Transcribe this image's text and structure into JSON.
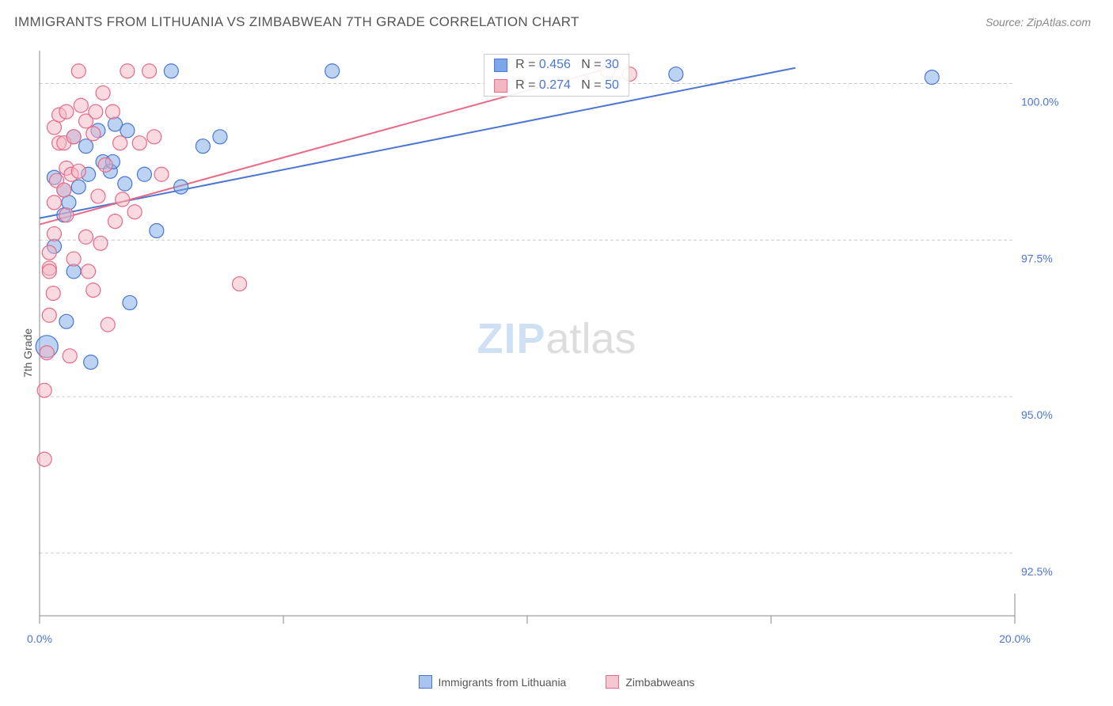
{
  "title": "IMMIGRANTS FROM LITHUANIA VS ZIMBABWEAN 7TH GRADE CORRELATION CHART",
  "source_label": "Source:",
  "source_value": "ZipAtlas.com",
  "y_axis_label": "7th Grade",
  "watermark": {
    "part1": "ZIP",
    "part2": "atlas"
  },
  "chart": {
    "type": "scatter",
    "background_color": "#ffffff",
    "grid_color": "#cccccc",
    "grid_dash": "4 3",
    "tick_label_color": "#4a76d4",
    "tick_fontsize": 14,
    "xlim": [
      0,
      20
    ],
    "ylim": [
      91.5,
      100.5
    ],
    "x_ticks": [
      0,
      5,
      10,
      15,
      20
    ],
    "x_tick_labels": [
      "0.0%",
      "",
      "",
      "",
      "20.0%"
    ],
    "y_grid": [
      92.5,
      95.0,
      97.5,
      100.0
    ],
    "y_tick_labels": [
      "92.5%",
      "95.0%",
      "97.5%",
      "100.0%"
    ],
    "point_radius": 9,
    "point_opacity": 0.5,
    "series": [
      {
        "name": "Immigrants from Lithuania",
        "fill": "#7ba7e8",
        "stroke": "#4a76d4",
        "R": "0.456",
        "N": "30",
        "trend": {
          "x1": 0,
          "y1": 97.85,
          "x2": 15.5,
          "y2": 100.25
        },
        "points": [
          [
            0.15,
            95.8,
            14
          ],
          [
            0.3,
            97.4
          ],
          [
            0.3,
            98.5
          ],
          [
            0.5,
            97.9
          ],
          [
            0.6,
            98.1
          ],
          [
            0.55,
            96.2
          ],
          [
            0.7,
            97.0
          ],
          [
            0.5,
            98.3
          ],
          [
            0.7,
            99.15
          ],
          [
            0.8,
            98.35
          ],
          [
            0.95,
            99.0
          ],
          [
            1.0,
            98.55
          ],
          [
            1.2,
            99.25
          ],
          [
            1.3,
            98.75
          ],
          [
            1.05,
            95.55
          ],
          [
            1.45,
            98.6
          ],
          [
            1.5,
            98.75
          ],
          [
            1.55,
            99.35
          ],
          [
            1.75,
            98.4
          ],
          [
            1.8,
            99.25
          ],
          [
            1.85,
            96.5
          ],
          [
            2.15,
            98.55
          ],
          [
            2.4,
            97.65
          ],
          [
            2.7,
            100.2
          ],
          [
            2.9,
            98.35
          ],
          [
            3.35,
            99.0
          ],
          [
            3.7,
            99.15
          ],
          [
            6.0,
            100.2
          ],
          [
            13.05,
            100.15
          ],
          [
            18.3,
            100.1
          ]
        ]
      },
      {
        "name": "Zimbabweans",
        "fill": "#f4b6c2",
        "stroke": "#e86a86",
        "R": "0.274",
        "N": "50",
        "trend": {
          "x1": 0,
          "y1": 97.75,
          "x2": 11.7,
          "y2": 100.25
        },
        "points": [
          [
            0.1,
            94.0
          ],
          [
            0.1,
            95.1
          ],
          [
            0.15,
            95.7
          ],
          [
            0.2,
            97.05
          ],
          [
            0.2,
            97.3
          ],
          [
            0.2,
            97.0
          ],
          [
            0.2,
            96.3
          ],
          [
            0.28,
            96.65
          ],
          [
            0.3,
            98.1
          ],
          [
            0.3,
            97.6
          ],
          [
            0.3,
            99.3
          ],
          [
            0.35,
            98.45
          ],
          [
            0.4,
            99.05
          ],
          [
            0.4,
            99.5
          ],
          [
            0.5,
            99.05
          ],
          [
            0.5,
            98.3
          ],
          [
            0.55,
            97.9
          ],
          [
            0.55,
            98.65
          ],
          [
            0.55,
            99.55
          ],
          [
            0.62,
            95.65
          ],
          [
            0.65,
            98.55
          ],
          [
            0.7,
            97.2
          ],
          [
            0.7,
            99.15
          ],
          [
            0.8,
            98.6
          ],
          [
            0.8,
            100.2
          ],
          [
            0.85,
            99.65
          ],
          [
            0.95,
            99.4
          ],
          [
            0.95,
            97.55
          ],
          [
            1.0,
            97.0
          ],
          [
            1.1,
            96.7
          ],
          [
            1.1,
            99.2
          ],
          [
            1.15,
            99.55
          ],
          [
            1.2,
            98.2
          ],
          [
            1.25,
            97.45
          ],
          [
            1.3,
            99.85
          ],
          [
            1.35,
            98.7
          ],
          [
            1.4,
            96.15
          ],
          [
            1.5,
            99.55
          ],
          [
            1.55,
            97.8
          ],
          [
            1.65,
            99.05
          ],
          [
            1.7,
            98.15
          ],
          [
            1.8,
            100.2
          ],
          [
            1.95,
            97.95
          ],
          [
            2.05,
            99.05
          ],
          [
            2.25,
            100.2
          ],
          [
            2.35,
            99.15
          ],
          [
            2.5,
            98.55
          ],
          [
            4.1,
            96.8
          ],
          [
            11.65,
            100.2
          ],
          [
            12.1,
            100.15
          ]
        ]
      }
    ],
    "legend_bottom": [
      {
        "label": "Immigrants from Lithuania",
        "fill": "#a9c5ef",
        "stroke": "#4a76d4"
      },
      {
        "label": "Zimbabweans",
        "fill": "#f6c6d1",
        "stroke": "#e86a86"
      }
    ]
  }
}
